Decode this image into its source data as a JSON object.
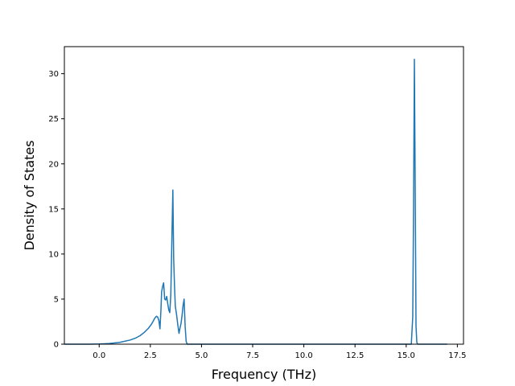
{
  "chart_data": {
    "type": "line",
    "title": "",
    "xlabel": "Frequency (THz)",
    "ylabel": "Density of States",
    "xlim": [
      -1.7,
      17.8
    ],
    "ylim": [
      0,
      33
    ],
    "xticks": [
      0.0,
      2.5,
      5.0,
      7.5,
      10.0,
      12.5,
      15.0,
      17.5
    ],
    "xtick_labels": [
      "0.0",
      "2.5",
      "5.0",
      "7.5",
      "10.0",
      "12.5",
      "15.0",
      "17.5"
    ],
    "yticks": [
      0,
      5,
      10,
      15,
      20,
      25,
      30
    ],
    "ytick_labels": [
      "0",
      "5",
      "10",
      "15",
      "20",
      "25",
      "30"
    ],
    "grid": false,
    "legend": "none",
    "series": [
      {
        "color": "#1f77b4",
        "x": [
          -1.7,
          -1.0,
          -0.5,
          0.0,
          0.5,
          1.0,
          1.5,
          1.8,
          2.0,
          2.2,
          2.4,
          2.55,
          2.65,
          2.72,
          2.8,
          2.86,
          2.92,
          2.97,
          3.02,
          3.05,
          3.1,
          3.15,
          3.2,
          3.25,
          3.3,
          3.35,
          3.4,
          3.45,
          3.5,
          3.56,
          3.6,
          3.64,
          3.68,
          3.72,
          3.78,
          3.85,
          3.9,
          3.95,
          4.0,
          4.05,
          4.1,
          4.15,
          4.2,
          4.25,
          4.3,
          5.0,
          10.0,
          15.0,
          15.25,
          15.32,
          15.36,
          15.4,
          15.44,
          15.48,
          15.52,
          15.56,
          15.6,
          16.0,
          17.0
        ],
        "y": [
          0,
          0,
          0,
          0.02,
          0.08,
          0.2,
          0.45,
          0.7,
          0.95,
          1.3,
          1.75,
          2.2,
          2.6,
          2.9,
          3.1,
          3.0,
          2.6,
          1.7,
          3.9,
          5.8,
          6.4,
          6.8,
          5.0,
          4.9,
          5.3,
          4.5,
          3.8,
          3.5,
          5.5,
          12.5,
          17.1,
          9.5,
          6.5,
          4.2,
          3.3,
          2.0,
          1.2,
          1.8,
          2.3,
          3.2,
          4.3,
          5.0,
          2.0,
          0.3,
          0,
          0,
          0,
          0,
          0,
          3.0,
          15.0,
          31.6,
          18.0,
          2.0,
          0.2,
          0,
          0,
          0,
          0
        ]
      }
    ]
  }
}
